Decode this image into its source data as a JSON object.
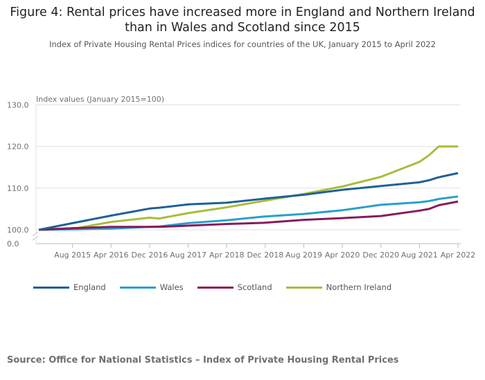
{
  "title": "Figure 4: Rental prices have increased more in England and Northern Ireland than in Wales and Scotland since 2015",
  "subtitle": "Index of Private Housing Rental Prices indices for countries of the UK, January 2015 to April 2022",
  "source": "Source: Office for National Statistics – Index of Private Housing Rental Prices",
  "chart_data": {
    "type": "line",
    "ylabel": "Index values (January 2015=100)",
    "y_ticks": [
      "130.0",
      "120.0",
      "110.0",
      "100.0",
      "0.0"
    ],
    "x_tick_labels": [
      "Aug 2015",
      "Apr 2016",
      "Dec 2016",
      "Aug 2017",
      "Apr 2018",
      "Dec 2018",
      "Aug 2019",
      "Apr 2020",
      "Dec 2020",
      "Aug 2021",
      "Apr 2022"
    ],
    "x_months_since_jan_2015": [
      0,
      7,
      15,
      23,
      25,
      31,
      39,
      47,
      55,
      63,
      71,
      79,
      81,
      83,
      87
    ],
    "ylim": [
      100,
      130
    ],
    "axis_break": true,
    "series": [
      {
        "name": "England",
        "color": "#206095",
        "values": [
          100,
          101.6,
          103.4,
          105.1,
          105.3,
          106.1,
          106.5,
          107.5,
          108.4,
          109.6,
          110.5,
          111.4,
          111.9,
          112.6,
          113.6
        ]
      },
      {
        "name": "Wales",
        "color": "#27a0cc",
        "values": [
          100,
          100.1,
          100.3,
          100.7,
          100.8,
          101.6,
          102.3,
          103.2,
          103.8,
          104.7,
          106.0,
          106.6,
          106.9,
          107.4,
          108.0
        ]
      },
      {
        "name": "Scotland",
        "color": "#871a5b",
        "values": [
          100,
          100.4,
          100.7,
          100.7,
          100.7,
          101.0,
          101.4,
          101.7,
          102.4,
          102.8,
          103.3,
          104.6,
          105.0,
          105.9,
          106.8
        ]
      },
      {
        "name": "Northern Ireland",
        "color": "#a8bd3a",
        "values": [
          100,
          100.2,
          101.9,
          102.9,
          102.7,
          104.0,
          105.4,
          107.0,
          108.6,
          110.4,
          112.7,
          116.3,
          117.9,
          120.0,
          120.0
        ]
      }
    ]
  }
}
